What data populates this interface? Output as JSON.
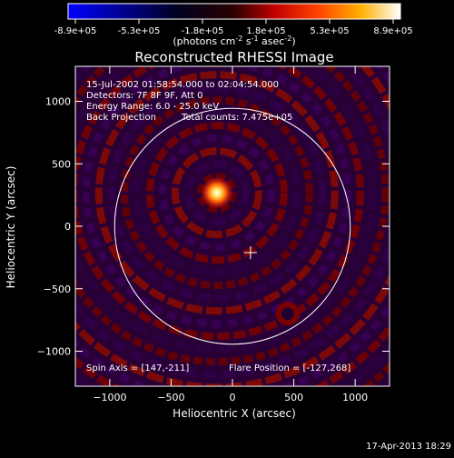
{
  "colorbar": {
    "tick_labels": [
      "-8.9e+05",
      "-5.3e+05",
      "-1.8e+05",
      "1.8e+05",
      "5.3e+05",
      "8.9e+05"
    ],
    "units_prefix": "(photons cm",
    "units_exp1": "-2",
    "units_mid": " s",
    "units_exp2": "-1",
    "units_mid2": " asec",
    "units_exp3": "-2",
    "units_suffix": ")",
    "colors": [
      "#0000ff",
      "#000000",
      "#8b0000",
      "#ff2000",
      "#ff8c00",
      "#ffff80",
      "#ffffff"
    ]
  },
  "chart_data": {
    "type": "heatmap",
    "title": "Reconstructed RHESSI Image",
    "xlabel": "Heliocentric X (arcsec)",
    "ylabel": "Heliocentric Y (arcsec)",
    "xlim": [
      -1280,
      1280
    ],
    "ylim": [
      -1280,
      1280
    ],
    "xticks": [
      -1000,
      -500,
      0,
      500,
      1000
    ],
    "yticks": [
      -1000,
      -500,
      0,
      500,
      1000
    ],
    "grid": false,
    "zmin": -890000,
    "zmax": 890000,
    "annotations": [
      "15-Jul-2002 01:58:54.000 to 02:04:54.000",
      "Detectors: 7F 8F 9F, Att 0",
      "Energy Range: 6.0 - 25.0 keV",
      "Back Projection",
      "Total counts: 7.475e+05",
      "Spin Axis = [147,-211]",
      "Flare Position = [-127,268]"
    ],
    "solar_disk_radius": 960,
    "flare_position": [
      -127,
      268
    ],
    "spin_axis": [
      147,
      -211
    ]
  },
  "timestamp": "17-Apr-2013 18:29"
}
